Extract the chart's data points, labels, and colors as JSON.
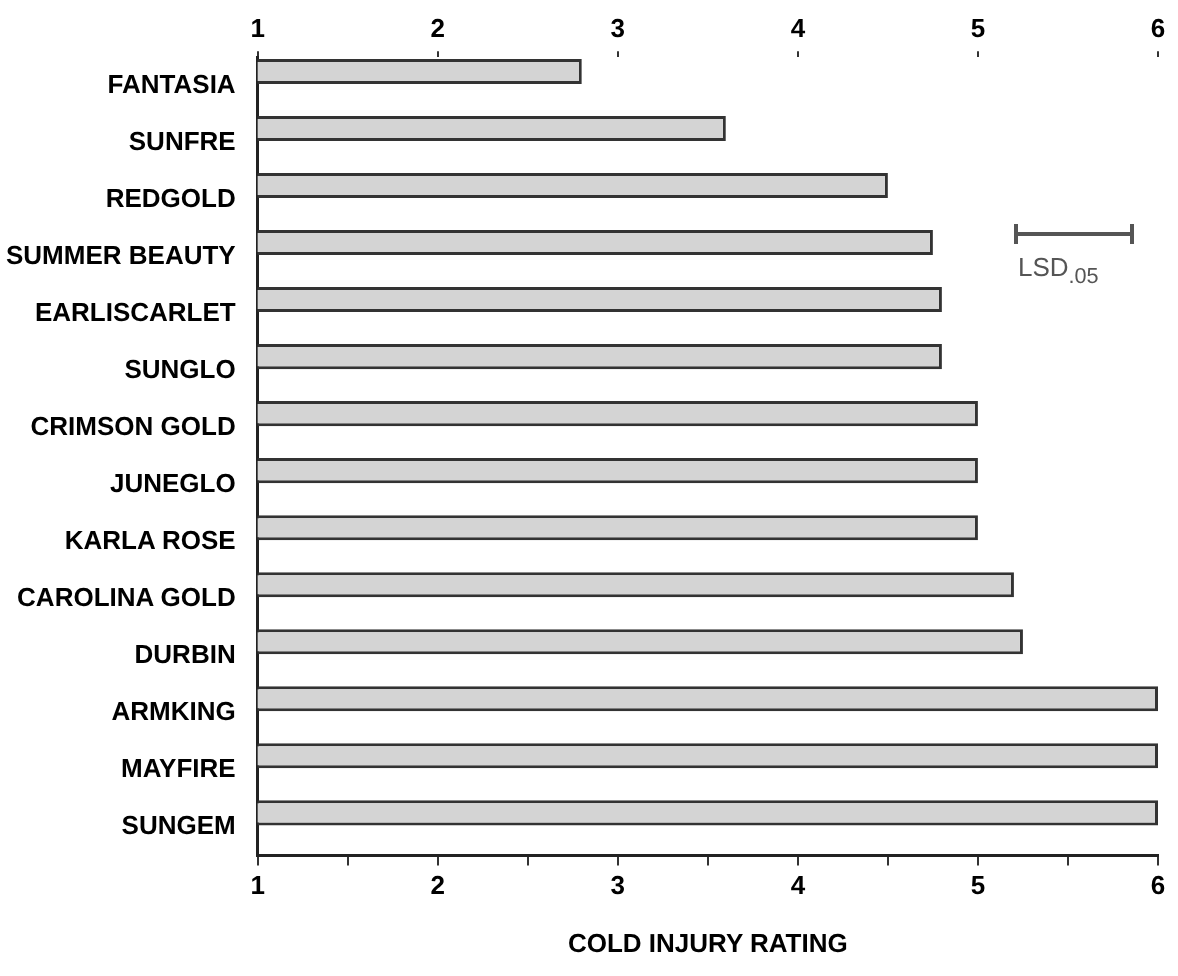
{
  "chart_data": {
    "type": "bar",
    "orientation": "horizontal",
    "categories": [
      "FANTASIA",
      "SUNFRE",
      "REDGOLD",
      "SUMMER BEAUTY",
      "EARLISCARLET",
      "SUNGLO",
      "CRIMSON GOLD",
      "JUNEGLO",
      "KARLA ROSE",
      "CAROLINA GOLD",
      "DURBIN",
      "ARMKING",
      "MAYFIRE",
      "SUNGEM"
    ],
    "values": [
      2.8,
      3.6,
      4.5,
      4.75,
      4.8,
      4.8,
      5.0,
      5.0,
      5.0,
      5.2,
      5.25,
      6.0,
      6.0,
      6.0
    ],
    "color": "#d4d4d4",
    "xlabel": "COLD INJURY RATING",
    "xlim": [
      1,
      6
    ],
    "xticks": [
      1,
      {
        "value": 1.5,
        "label": null
      },
      2,
      {
        "value": 2.5,
        "label": null
      },
      3,
      {
        "value": 3.5,
        "label": null
      },
      4,
      {
        "value": 4.5,
        "label": null
      },
      5,
      {
        "value": 5.5,
        "label": null
      },
      6
    ],
    "x2lim": [
      1,
      6
    ],
    "x2ticks": [
      1,
      2,
      3,
      4,
      5,
      6
    ],
    "annotations": [
      "LSD$_{.05}$"
    ],
    "grid": false,
    "legend": false
  }
}
